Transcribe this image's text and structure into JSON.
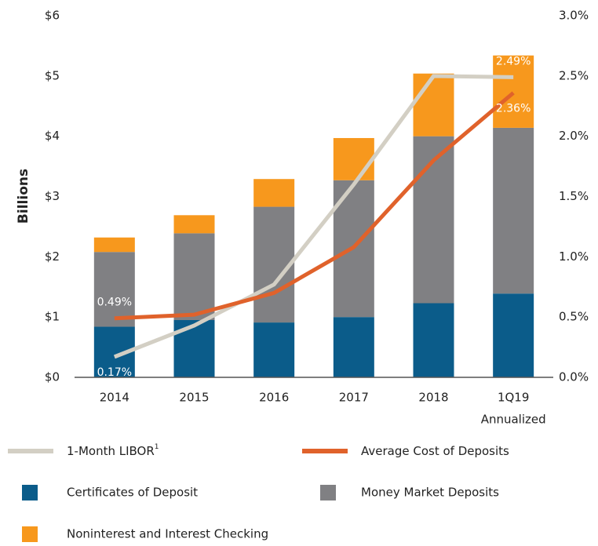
{
  "chart_data": {
    "type": "bar",
    "y_axis_label": "Billions",
    "categories": [
      "2014",
      "2015",
      "2016",
      "2017",
      "2018",
      "1Q19"
    ],
    "category_note": "Annualized",
    "ylim": [
      0,
      6
    ],
    "yticks": [
      {
        "value": 0,
        "label": "$0"
      },
      {
        "value": 1,
        "label": "$1"
      },
      {
        "value": 2,
        "label": "$2"
      },
      {
        "value": 3,
        "label": "$3"
      },
      {
        "value": 4,
        "label": "$4"
      },
      {
        "value": 5,
        "label": "$5"
      },
      {
        "value": 6,
        "label": "$6"
      }
    ],
    "y2lim": [
      0,
      3
    ],
    "y2ticks": [
      {
        "value": 0,
        "label": "0.0%"
      },
      {
        "value": 0.5,
        "label": "0.5%"
      },
      {
        "value": 1,
        "label": "1.0%"
      },
      {
        "value": 1.5,
        "label": "1.5%"
      },
      {
        "value": 2,
        "label": "2.0%"
      },
      {
        "value": 2.5,
        "label": "2.5%"
      },
      {
        "value": 3,
        "label": "3.0%"
      }
    ],
    "stacked": true,
    "series": [
      {
        "name": "Certificates of Deposit",
        "color": "#0b5c8a",
        "values": [
          0.84,
          0.95,
          0.91,
          1.0,
          1.23,
          1.39
        ]
      },
      {
        "name": "Money Market Deposits",
        "color": "#808083",
        "values": [
          1.24,
          1.44,
          1.92,
          2.27,
          2.77,
          2.75
        ]
      },
      {
        "name": "Noninterest and Interest Checking",
        "color": "#f7981d",
        "values": [
          0.24,
          0.3,
          0.46,
          0.7,
          1.04,
          1.2
        ]
      },
      {
        "name": "1-Month LIBOR",
        "name_superscript": "1",
        "color": "#d3cfc4",
        "type": "line",
        "axis": "y2",
        "values": [
          0.17,
          0.43,
          0.77,
          1.6,
          2.5,
          2.49
        ],
        "value_labels": [
          "0.17%",
          null,
          null,
          null,
          null,
          "2.49%"
        ]
      },
      {
        "name": "Average Cost of Deposits",
        "color": "#e0622b",
        "type": "line",
        "axis": "y2",
        "values": [
          0.49,
          0.52,
          0.7,
          1.08,
          1.8,
          2.36
        ],
        "value_labels": [
          "0.49%",
          null,
          null,
          null,
          null,
          "2.36%"
        ]
      }
    ]
  }
}
